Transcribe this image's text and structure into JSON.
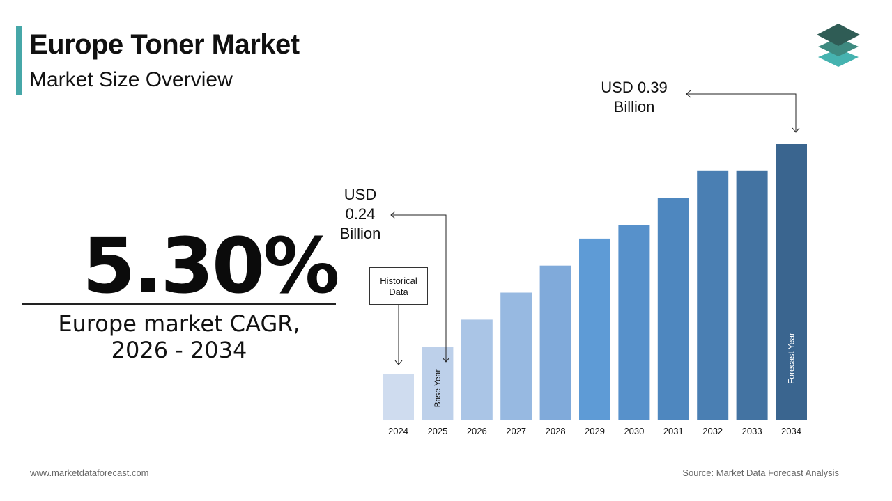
{
  "header": {
    "title": "Europe Toner Market",
    "subtitle": "Market Size Overview"
  },
  "logo": {
    "icon": "stacked-layers-icon"
  },
  "cagr": {
    "value": "5.30%",
    "label_line1": "Europe market CAGR,",
    "label_line2": "2026 - 2034"
  },
  "callouts": {
    "end_line1": "USD 0.39",
    "end_line2": "Billion",
    "start_line1": "USD",
    "start_line2": "0.24",
    "start_line3": "Billion",
    "historical_line1": "Historical",
    "historical_line2": "Data"
  },
  "footer": {
    "website": "www.marketdataforecast.com",
    "source": "Source: Market Data Forecast Analysis"
  },
  "chart_data": {
    "type": "bar",
    "categories": [
      "2024",
      "2025",
      "2026",
      "2027",
      "2028",
      "2029",
      "2030",
      "2031",
      "2032",
      "2033",
      "2034"
    ],
    "values": [
      0.22,
      0.24,
      0.26,
      0.28,
      0.3,
      0.32,
      0.33,
      0.35,
      0.37,
      0.37,
      0.39
    ],
    "bar_labels": {
      "2025": "Base Year",
      "2034": "Forecast Year"
    },
    "colors": [
      "#cfdcef",
      "#bdd0ea",
      "#aac5e6",
      "#97b9e1",
      "#80aada",
      "#5e9bd6",
      "#5791cb",
      "#4e87bf",
      "#4a7fb3",
      "#4373a2",
      "#3a658f"
    ]
  }
}
